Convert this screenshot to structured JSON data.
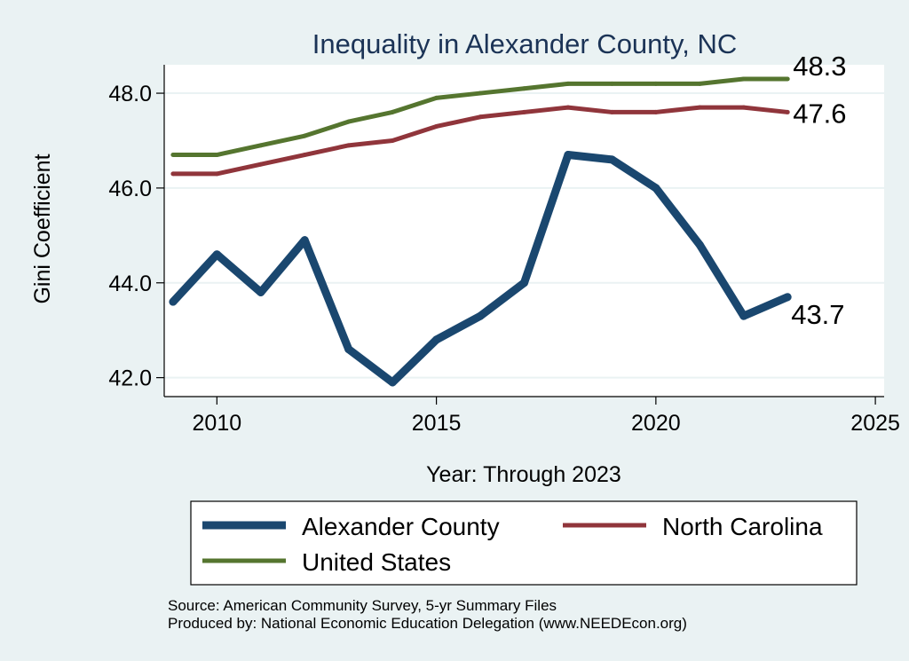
{
  "chart_data": {
    "type": "line",
    "title": "Inequality in Alexander County, NC",
    "xlabel": "Year: Through 2023",
    "ylabel": "Gini Coefficient",
    "xlim": [
      2008.8,
      2025.2
    ],
    "ylim": [
      41.6,
      48.6
    ],
    "x_ticks": [
      2010,
      2015,
      2020,
      2025
    ],
    "y_ticks": [
      42.0,
      44.0,
      46.0,
      48.0
    ],
    "y_tick_labels": [
      "42.0",
      "44.0",
      "46.0",
      "48.0"
    ],
    "grid": true,
    "x": [
      2009,
      2010,
      2011,
      2012,
      2013,
      2014,
      2015,
      2016,
      2017,
      2018,
      2019,
      2020,
      2021,
      2022,
      2023
    ],
    "series": [
      {
        "name": "Alexander County",
        "color": "#1a476f",
        "values": [
          43.6,
          44.6,
          43.8,
          44.9,
          42.6,
          41.9,
          42.8,
          43.3,
          44.0,
          46.7,
          46.6,
          46.0,
          44.8,
          43.3,
          43.7
        ],
        "end_label": "43.7"
      },
      {
        "name": "North Carolina",
        "color": "#90353b",
        "values": [
          46.3,
          46.3,
          46.5,
          46.7,
          46.9,
          47.0,
          47.3,
          47.5,
          47.6,
          47.7,
          47.6,
          47.6,
          47.7,
          47.7,
          47.6
        ],
        "end_label": "47.6"
      },
      {
        "name": "United States",
        "color": "#55752f",
        "values": [
          46.7,
          46.7,
          46.9,
          47.1,
          47.4,
          47.6,
          47.9,
          48.0,
          48.1,
          48.2,
          48.2,
          48.2,
          48.2,
          48.3,
          48.3
        ],
        "end_label": "48.3"
      }
    ],
    "legend": {
      "position": "bottom",
      "entries": [
        "Alexander County",
        "North Carolina",
        "United States"
      ]
    },
    "notes": [
      "Source: American Community Survey, 5-yr Summary Files",
      "Produced by: National Economic Education Delegation (www.NEEDEcon.org)"
    ]
  }
}
